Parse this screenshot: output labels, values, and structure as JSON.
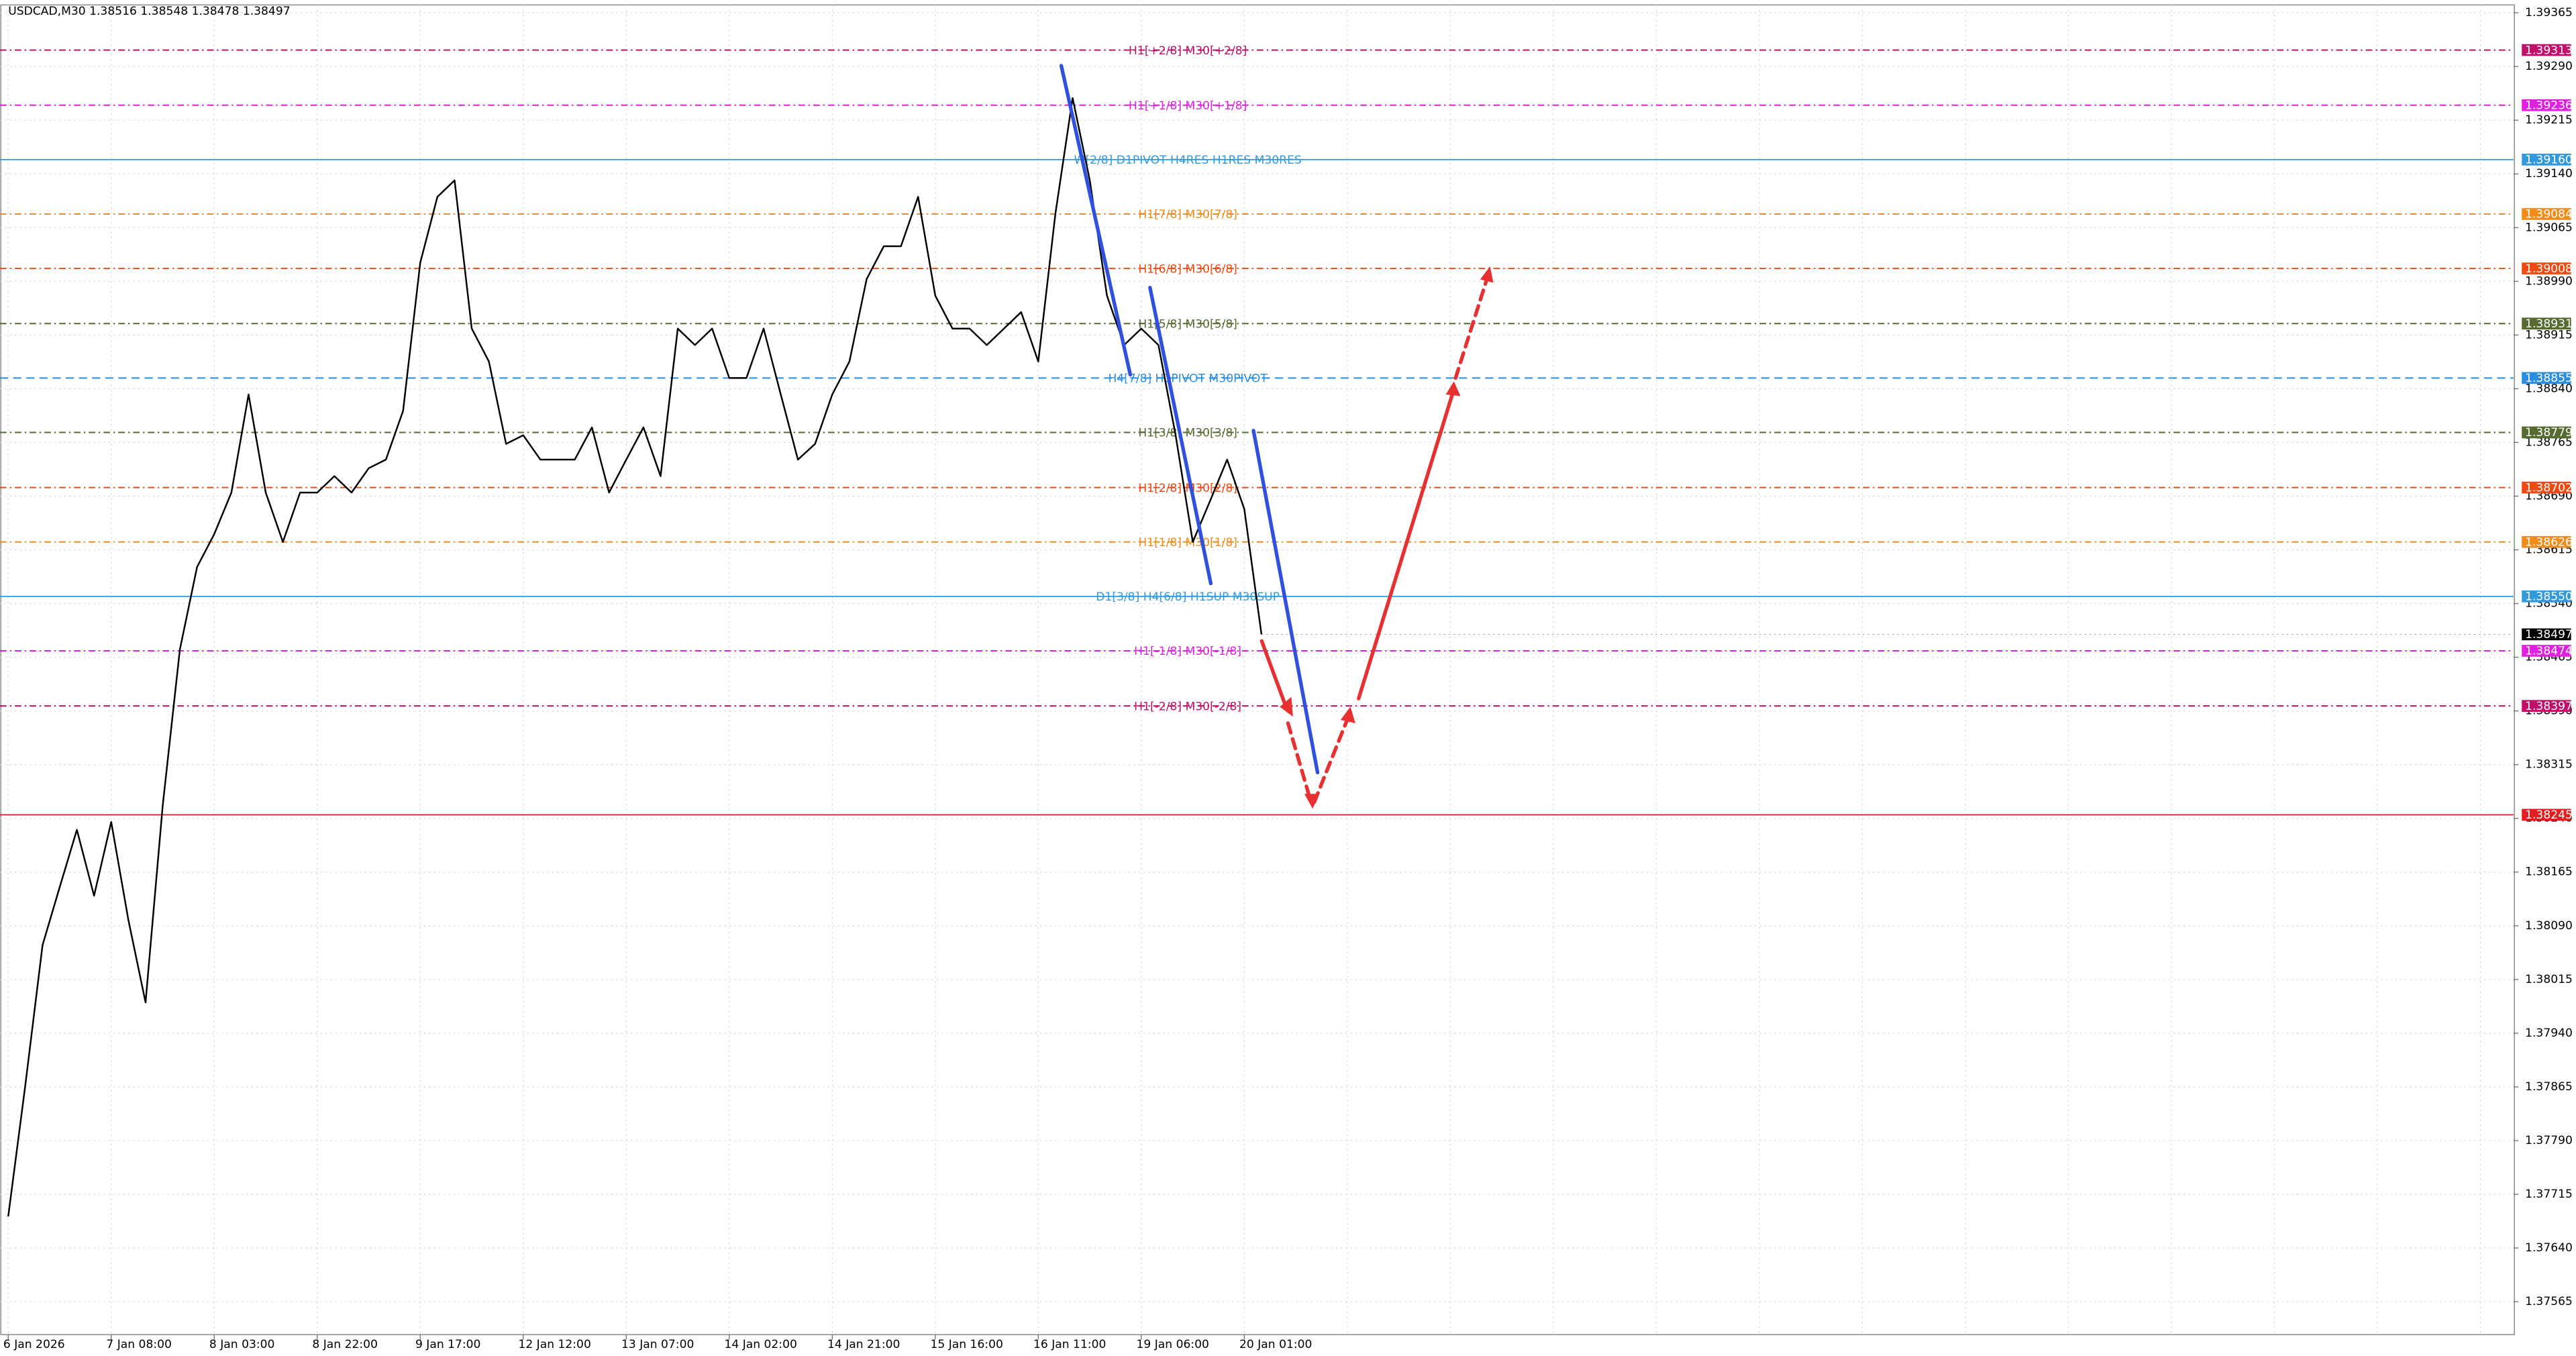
{
  "chart_data": {
    "type": "line",
    "title": "USDCAD,M30  1.38516 1.38548 1.38478 1.38497",
    "color": "#000000",
    "categories": [
      "6 Jan 2026",
      null,
      null,
      null,
      null,
      null,
      "7 Jan 08:00",
      null,
      null,
      null,
      null,
      null,
      "8 Jan 03:00",
      null,
      null,
      null,
      null,
      null,
      "8 Jan 22:00",
      null,
      null,
      null,
      null,
      null,
      "9 Jan 17:00",
      null,
      null,
      null,
      null,
      null,
      "12 Jan 12:00",
      null,
      null,
      null,
      null,
      null,
      "13 Jan 07:00",
      null,
      null,
      null,
      null,
      null,
      "14 Jan 02:00",
      null,
      null,
      null,
      null,
      null,
      "14 Jan 21:00",
      null,
      null,
      null,
      null,
      null,
      "15 Jan 16:00",
      null,
      null,
      null,
      null,
      null,
      "16 Jan 11:00",
      null,
      null,
      null,
      null,
      null,
      "19 Jan 06:00",
      null,
      null,
      null,
      null,
      null,
      "20 Jan 01:00",
      null
    ],
    "values": [
      1.37684,
      1.37868,
      1.38063,
      1.38144,
      1.38224,
      1.38132,
      1.38235,
      1.38098,
      1.37983,
      1.38258,
      1.38476,
      1.38591,
      1.38637,
      1.38695,
      1.38832,
      1.38695,
      1.38626,
      1.38695,
      1.38695,
      1.38718,
      1.38695,
      1.38729,
      1.38741,
      1.38809,
      1.39016,
      1.39108,
      1.39131,
      1.38924,
      1.38878,
      1.38763,
      1.38775,
      1.38741,
      1.38741,
      1.38741,
      1.38786,
      1.38695,
      1.38741,
      1.38786,
      1.38718,
      1.38924,
      1.38901,
      1.38924,
      1.38855,
      1.38855,
      1.38924,
      1.38832,
      1.38741,
      1.38763,
      1.38832,
      1.38878,
      1.38993,
      1.39039,
      1.39039,
      1.39108,
      1.3897,
      1.38924,
      1.38924,
      1.38901,
      1.38924,
      1.38947,
      1.38878,
      1.39085,
      1.39246,
      1.39131,
      1.3897,
      1.38901,
      1.38924,
      1.38901,
      1.38775,
      1.38626,
      1.38683,
      1.38741,
      1.38672,
      1.38497
    ],
    "ylim": [
      1.37519,
      1.39376
    ],
    "yticks": [
      1.39365,
      {
        "value": 1.3929,
        "label": "1.39290"
      },
      1.39215,
      {
        "value": 1.3914,
        "label": "1.39140"
      },
      1.39065,
      {
        "value": 1.3899,
        "label": "1.38990"
      },
      1.38915,
      {
        "value": 1.3884,
        "label": "1.38840"
      },
      1.38765,
      {
        "value": 1.3869,
        "label": "1.38690"
      },
      1.38615,
      {
        "value": 1.3854,
        "label": "1.38540"
      },
      1.38465,
      {
        "value": 1.3839,
        "label": "1.38390"
      },
      1.38315,
      {
        "value": 1.3824,
        "label": "1.38240"
      },
      1.38165,
      {
        "value": 1.3809,
        "label": "1.38090"
      },
      1.38015,
      {
        "value": 1.3794,
        "label": "1.37940"
      },
      1.37865,
      {
        "value": 1.3779,
        "label": "1.37790"
      },
      1.37715,
      {
        "value": 1.3764,
        "label": "1.37640"
      },
      1.37565
    ],
    "grid": true,
    "last_price_color": "#000000",
    "levels": [
      {
        "value": 1.39313,
        "label": "H1[+2/8] M30[+2/8]",
        "color": "#c0106a",
        "style": "dashdot"
      },
      {
        "value": 1.39236,
        "label": "H1[+1/8] M30[+1/8]",
        "color": "#e020e0",
        "style": "dashdot"
      },
      {
        "value": 1.3916,
        "value_label": "1.39160",
        "label": "W[2/8] D1PIVOT H4RES H1RES M30RES",
        "color": "#3399dd",
        "style": "solid"
      },
      {
        "value": 1.39084,
        "label": "H1[7/8] M30[7/8]",
        "color": "#f08c1a",
        "style": "dashdot"
      },
      {
        "value": 1.39008,
        "label": "H1[6/8] M30[6/8]",
        "color": "#f04a12",
        "style": "dashdot"
      },
      {
        "value": 1.38931,
        "label": "H1[5/8] M30[5/8]",
        "color": "#556b2f",
        "style": "dashdot"
      },
      {
        "value": 1.38855,
        "label": "H4[7/8] H1PIVOT M30PIVOT",
        "color": "#2a8ee0",
        "style": "dash"
      },
      {
        "value": 1.38779,
        "label": "H1[3/8] M30[3/8]",
        "color": "#556b2f",
        "style": "dashdot"
      },
      {
        "value": 1.38702,
        "label": "H1[2/8] M30[2/8]",
        "color": "#f04a12",
        "style": "dashdot"
      },
      {
        "value": 1.38626,
        "label": "H1[1/8] M30[1/8]",
        "color": "#f08c1a",
        "style": "dashdot"
      },
      {
        "value": 1.3855,
        "value_label": "1.38550",
        "label": "D1[3/8] H4[6/8] H1SUP M30SUP",
        "color": "#3399dd",
        "style": "solid"
      },
      {
        "value": 1.38474,
        "label": "H1[-1/8] M30[-1/8]",
        "color": "#e020e0",
        "style": "dashdot"
      },
      {
        "value": 1.38397,
        "label": "H1[-2/8] M30[-2/8]",
        "color": "#c0106a",
        "style": "dashdot"
      },
      {
        "value": 1.38245,
        "color": "#e02020",
        "style": "solid"
      }
    ]
  }
}
